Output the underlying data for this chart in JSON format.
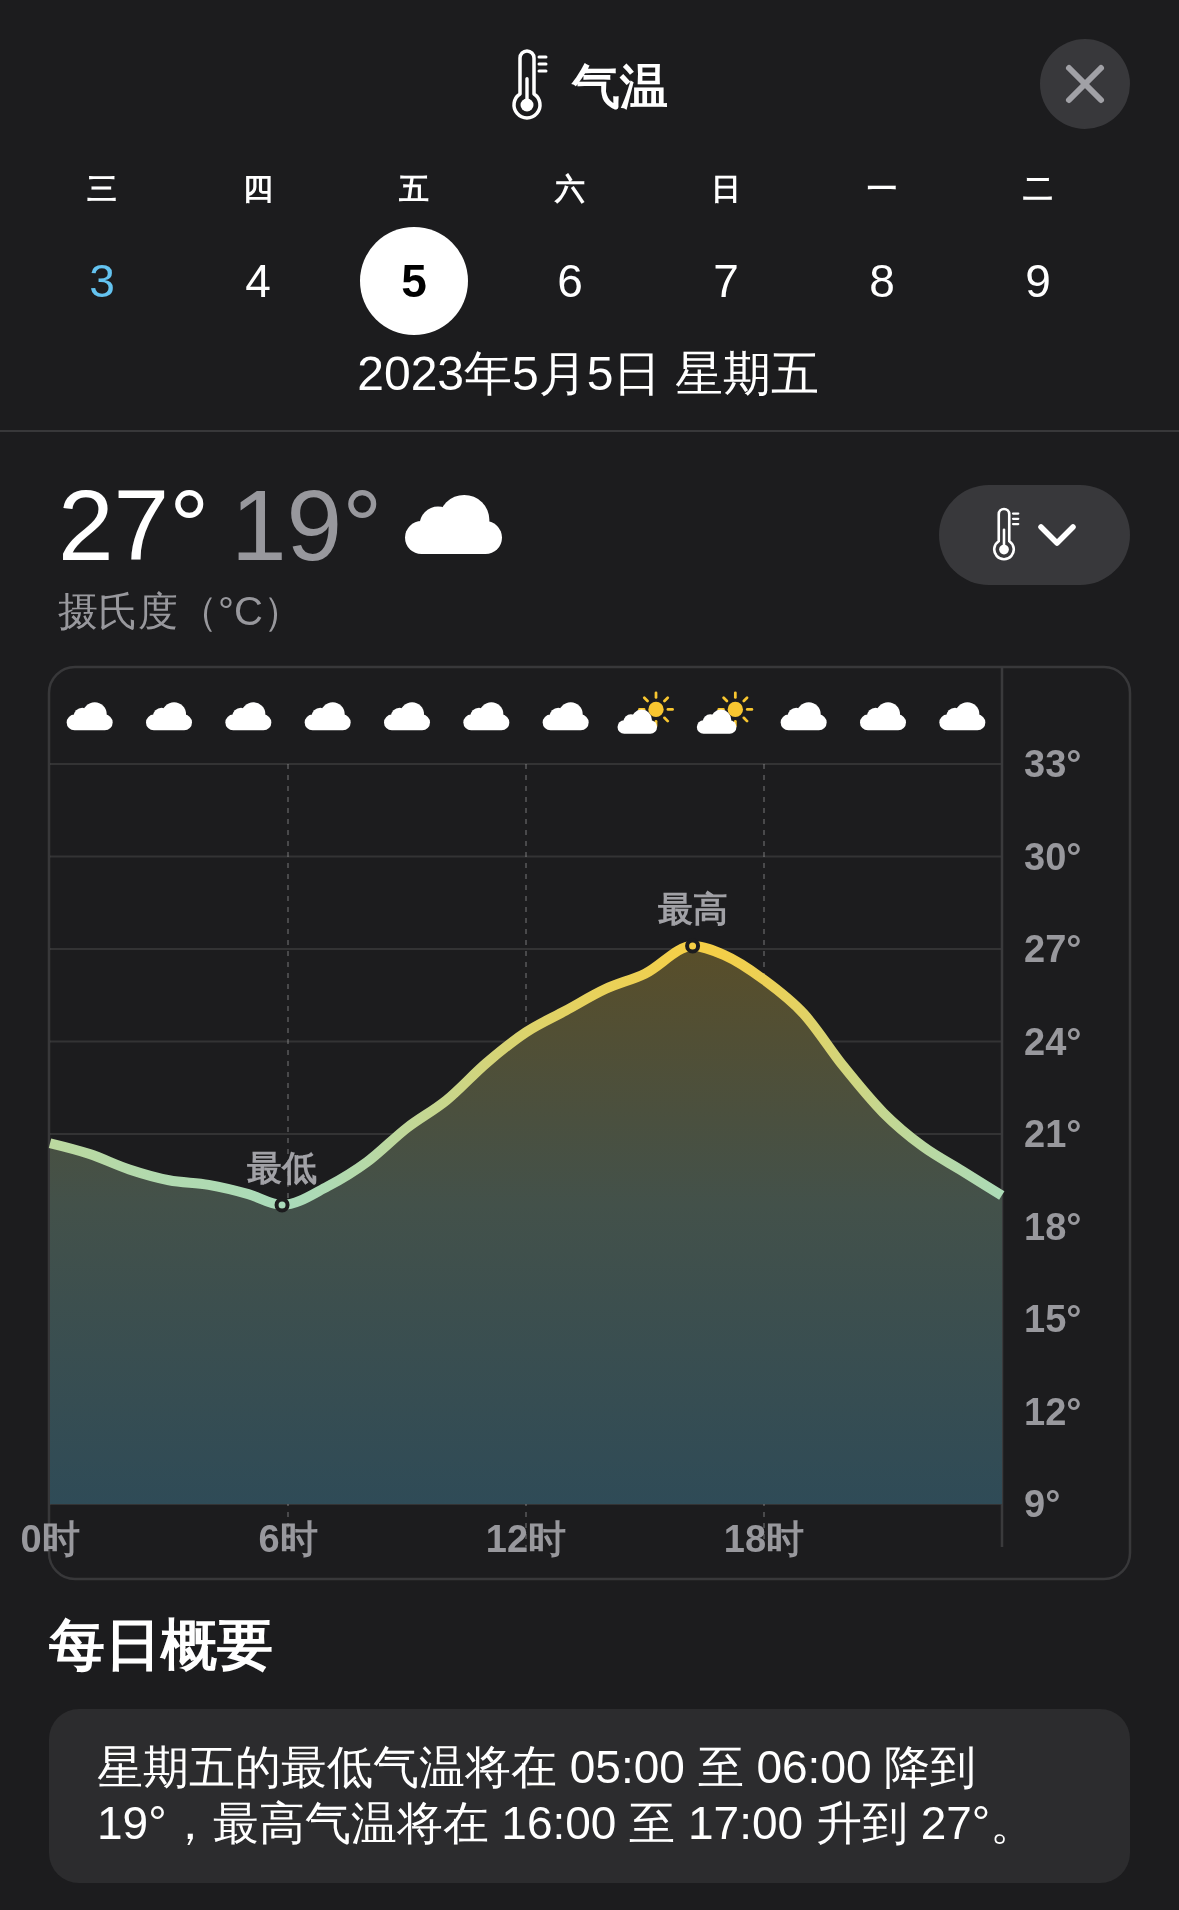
{
  "chart_data": {
    "type": "area",
    "title": "气温",
    "subtitle": "2023年5月5日 星期五",
    "ylabel": "摄氏度（°C）",
    "xlim": [
      0,
      24
    ],
    "xticks": [
      {
        "value": 0,
        "label": "0时"
      },
      {
        "value": 6,
        "label": "6时"
      },
      {
        "value": 12,
        "label": "12时"
      },
      {
        "value": 18,
        "label": "18时"
      }
    ],
    "ylim": [
      9,
      33
    ],
    "yticks": [
      {
        "value": 9,
        "label": "9°"
      },
      {
        "value": 12,
        "label": "12°"
      },
      {
        "value": 15,
        "label": "15°"
      },
      {
        "value": 18,
        "label": "18°"
      },
      {
        "value": 21,
        "label": "21°"
      },
      {
        "value": 24,
        "label": "24°"
      },
      {
        "value": 27,
        "label": "27°"
      },
      {
        "value": 30,
        "label": "30°"
      },
      {
        "value": 33,
        "label": "33°"
      }
    ],
    "grid": true,
    "series": [
      {
        "x": [
          0,
          1,
          2,
          3,
          4,
          5,
          5.85,
          7,
          8,
          9,
          10,
          11,
          12,
          13,
          14,
          15,
          16.2,
          17,
          18,
          19,
          20,
          21,
          22,
          23,
          24
        ],
        "values": [
          20.7,
          20.35,
          19.85,
          19.5,
          19.35,
          19.05,
          18.7,
          19.3,
          20.1,
          21.2,
          22.1,
          23.3,
          24.3,
          25.0,
          25.7,
          26.2,
          27.1,
          26.8,
          26.0,
          24.9,
          23.2,
          21.7,
          20.6,
          19.8,
          19.0
        ],
        "colors": [
          "#bbd89f",
          "#b8d9a4",
          "#b4d9ab",
          "#b0dab0",
          "#afdab2",
          "#acdbb6",
          "#a9dbbb",
          "#aedab3",
          "#b6d9a7",
          "#c0d798",
          "#c8d68b",
          "#d3d47a",
          "#dcd36c",
          "#e3d262",
          "#e9d159",
          "#eed052",
          "#f6cf45",
          "#f3cf49",
          "#ecd055",
          "#e2d264",
          "#d2d57c",
          "#c4d791",
          "#bad8a0",
          "#b3d9ac",
          "#acdbb7"
        ]
      },
      {
        "type": "scatter",
        "x": [
          5.85,
          16.2
        ],
        "values": [
          18.7,
          27.1
        ],
        "colors": [
          "#a9dbbb",
          "#f6cf45"
        ],
        "marker": "circle"
      }
    ],
    "annotations": [
      "三",
      "四",
      "五",
      "六",
      "日",
      "一",
      "二",
      "3",
      "4",
      "5",
      "6",
      "7",
      "8",
      "9",
      "27°",
      "19°",
      {
        "text": "最低",
        "x": 5.85,
        "y": 18.7
      },
      {
        "text": "最高",
        "x": 16.2,
        "y": 27.1
      },
      "每日概要",
      "星期五的最低气温将在 05:00 至 06:00 降到 19°，最高气温将在 16:00 至 17:00 升到 27°。"
    ]
  }
}
